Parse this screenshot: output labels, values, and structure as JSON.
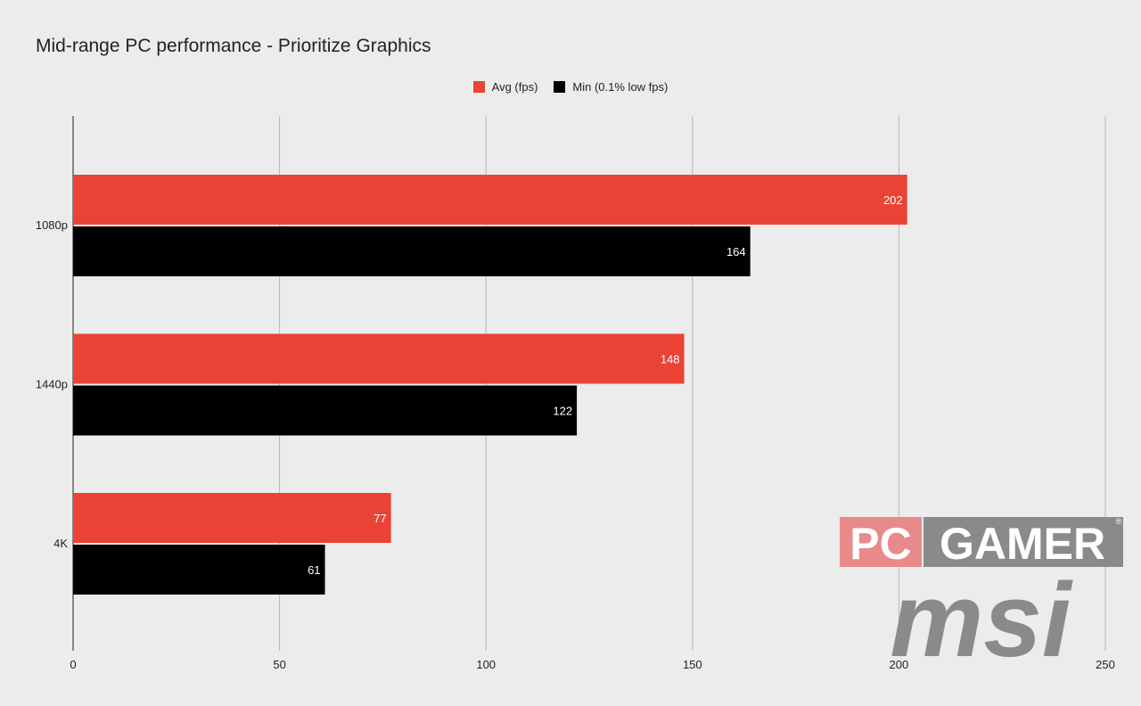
{
  "chart_data": {
    "type": "bar",
    "orientation": "horizontal",
    "title": "Mid-range PC performance - Prioritize Graphics",
    "categories": [
      "1080p",
      "1440p",
      "4K"
    ],
    "series": [
      {
        "name": "Avg (fps)",
        "color": "#ea4335",
        "values": [
          202,
          148,
          77
        ]
      },
      {
        "name": "Min (0.1% low fps)",
        "color": "#000000",
        "values": [
          164,
          122,
          61
        ]
      }
    ],
    "xlim": [
      0,
      250
    ],
    "xticks": [
      0,
      50,
      100,
      150,
      200,
      250
    ],
    "grid": true,
    "legend_position": "top-center",
    "data_labels": true
  },
  "branding": {
    "pc_text": "PC",
    "gamer_text": "GAMER",
    "registered_mark": "®",
    "msi_text": "msi",
    "pc_color": "#e88a8a",
    "gamer_color": "#8a8a8a",
    "msi_color": "#8a8a8a"
  }
}
